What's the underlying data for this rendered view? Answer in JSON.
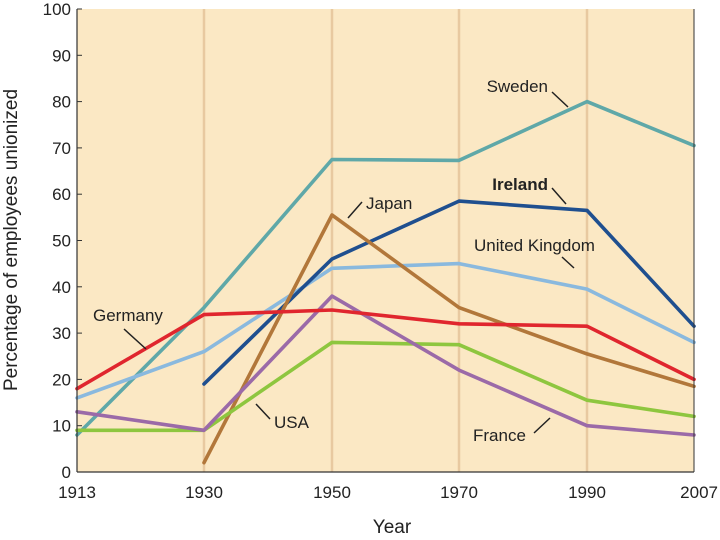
{
  "chart_data": {
    "type": "line",
    "title": "",
    "xlabel": "Year",
    "ylabel": "Percentage of employees unionized",
    "ylim": [
      0,
      100
    ],
    "yticks": [
      0,
      10,
      20,
      30,
      40,
      50,
      60,
      70,
      80,
      90,
      100
    ],
    "xticks": [
      "1913",
      "1930",
      "1950",
      "1970",
      "1990",
      "2007"
    ],
    "grid": "vertical lines at year ticks",
    "colors": {
      "background": "#fbe8c4",
      "gridline": "#e8c9a0",
      "axis": "#333333"
    },
    "series": [
      {
        "name": "Sweden",
        "color": "#5fa8a8",
        "points": [
          [
            1913,
            8
          ],
          [
            1930,
            35.5
          ],
          [
            1950,
            67.5
          ],
          [
            1970,
            67.3
          ],
          [
            1990,
            80
          ],
          [
            2007,
            70.5
          ]
        ]
      },
      {
        "name": "Ireland",
        "color": "#1f4f8f",
        "points": [
          [
            1930,
            19
          ],
          [
            1950,
            46
          ],
          [
            1970,
            58.5
          ],
          [
            1990,
            56.5
          ],
          [
            2007,
            31.5
          ]
        ]
      },
      {
        "name": "Japan",
        "color": "#b2773a",
        "points": [
          [
            1930,
            2
          ],
          [
            1950,
            55.5
          ],
          [
            1970,
            35.5
          ],
          [
            1990,
            25.5
          ],
          [
            2007,
            18.5
          ]
        ]
      },
      {
        "name": "United Kingdom",
        "color": "#8ab9de",
        "points": [
          [
            1913,
            16
          ],
          [
            1930,
            26
          ],
          [
            1950,
            44
          ],
          [
            1970,
            45
          ],
          [
            1990,
            39.5
          ],
          [
            2007,
            28
          ]
        ]
      },
      {
        "name": "Germany",
        "color": "#e0262e",
        "points": [
          [
            1913,
            18
          ],
          [
            1930,
            34
          ],
          [
            1950,
            35
          ],
          [
            1970,
            32
          ],
          [
            1990,
            31.5
          ],
          [
            2007,
            20
          ]
        ]
      },
      {
        "name": "USA",
        "color": "#8ec63f",
        "points": [
          [
            1913,
            9
          ],
          [
            1930,
            9
          ],
          [
            1950,
            28
          ],
          [
            1970,
            27.5
          ],
          [
            1990,
            15.5
          ],
          [
            2007,
            12
          ]
        ]
      },
      {
        "name": "France",
        "color": "#9b6aa8",
        "points": [
          [
            1913,
            13
          ],
          [
            1930,
            9
          ],
          [
            1950,
            38
          ],
          [
            1970,
            22
          ],
          [
            1990,
            10
          ],
          [
            2007,
            8
          ]
        ]
      }
    ],
    "annotations": [
      {
        "text": "Sweden",
        "series": "Sweden",
        "bold": false
      },
      {
        "text": "Ireland",
        "series": "Ireland",
        "bold": true
      },
      {
        "text": "Japan",
        "series": "Japan",
        "bold": false
      },
      {
        "text": "United Kingdom",
        "series": "United Kingdom",
        "bold": false
      },
      {
        "text": "Germany",
        "series": "Germany",
        "bold": false
      },
      {
        "text": "USA",
        "series": "USA",
        "bold": false
      },
      {
        "text": "France",
        "series": "France",
        "bold": false
      }
    ]
  }
}
